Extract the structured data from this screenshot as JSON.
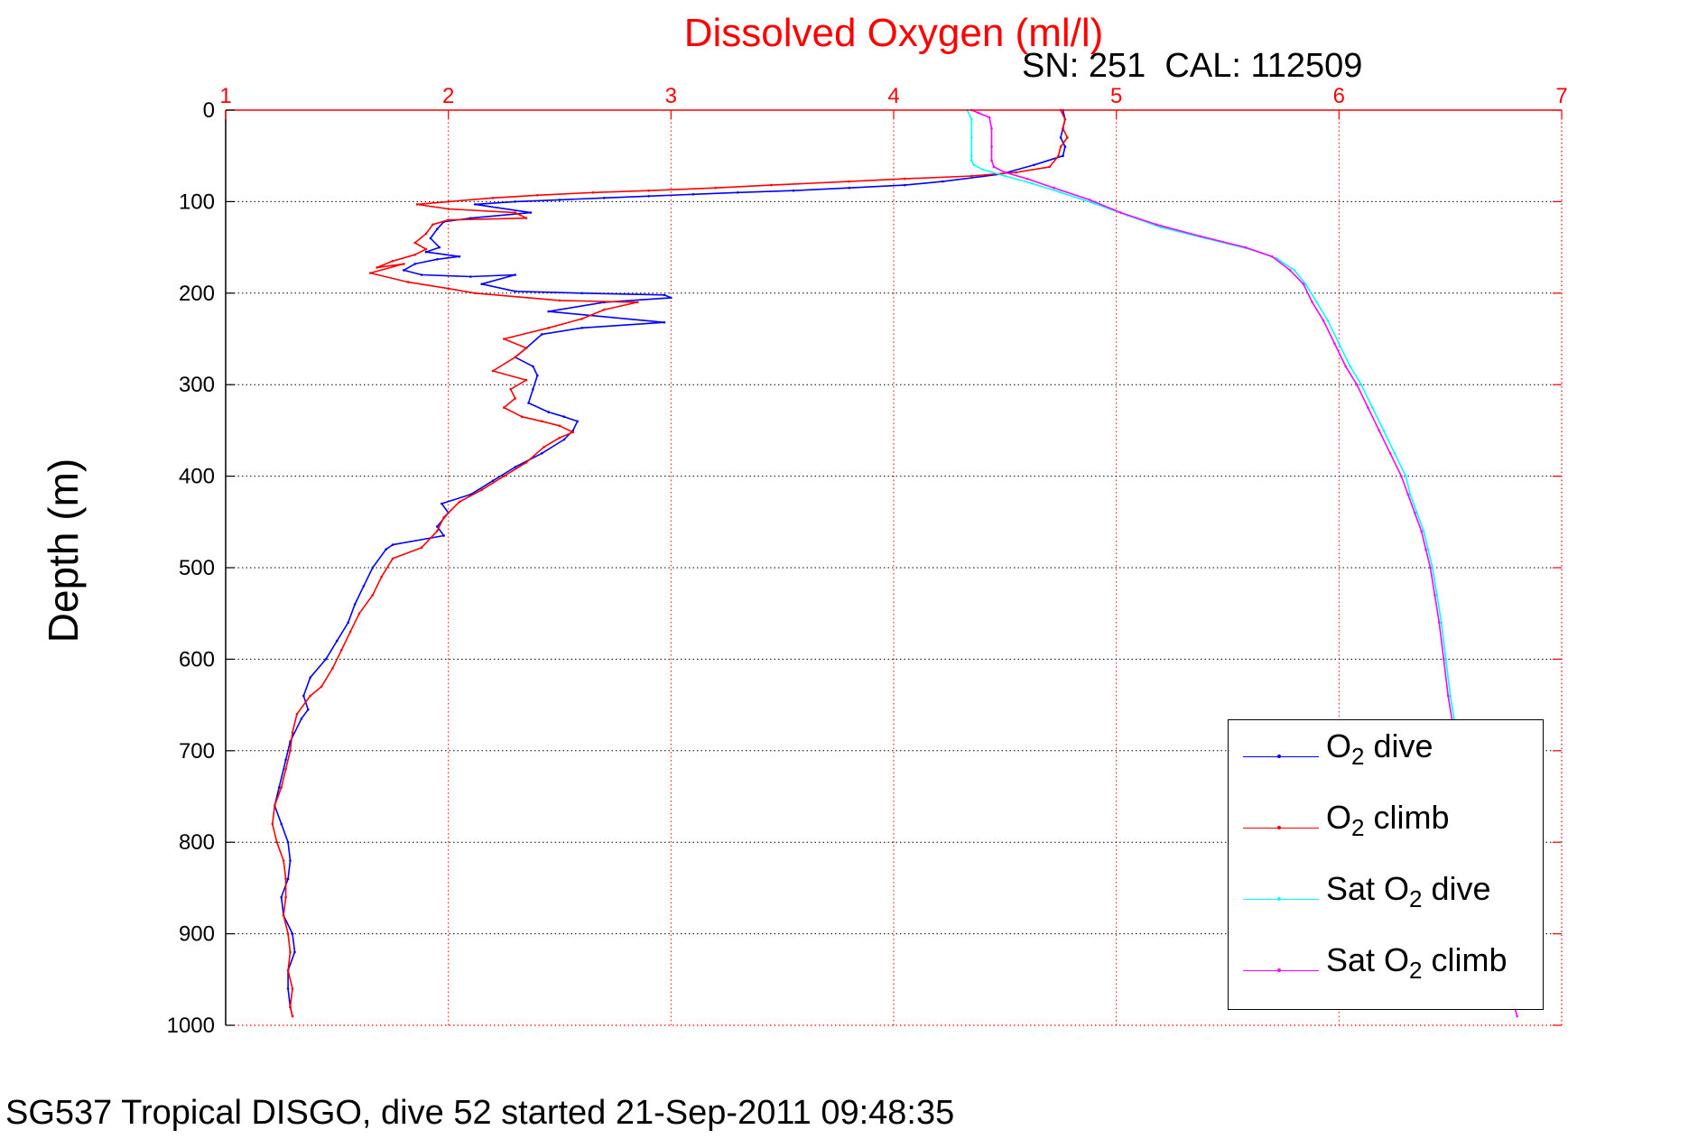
{
  "chart_data": {
    "type": "line",
    "title": "Dissolved Oxygen (ml/l)",
    "subtitle": "SN: 251  CAL: 112509",
    "xlabel": "",
    "ylabel": "Depth (m)",
    "footer": "SG537 Tropical DISGO, dive 52 started 21-Sep-2011 09:48:35",
    "xlim": [
      1,
      7
    ],
    "ylim": [
      0,
      1000
    ],
    "y_inverted": true,
    "x_axis_position": "top",
    "xticks": [
      1,
      2,
      3,
      4,
      5,
      6,
      7
    ],
    "yticks": [
      0,
      100,
      200,
      300,
      400,
      500,
      600,
      700,
      800,
      900,
      1000
    ],
    "grid": true,
    "legend_position": "bottom-right",
    "colors": {
      "axis_top": "#ff0000",
      "axis_left": "#000000",
      "grid_top": "#ff0000",
      "grid_left": "#000000"
    },
    "series": [
      {
        "name": "O2 dive",
        "legend_main": "O",
        "legend_sub": "2",
        "legend_rest": " dive",
        "color": "#0000ff",
        "x": [
          4.76,
          4.77,
          4.76,
          4.75,
          4.77,
          4.76,
          4.63,
          4.48,
          4.22,
          4.05,
          3.8,
          3.55,
          3.3,
          3.1,
          2.9,
          2.7,
          2.5,
          2.3,
          2.12,
          2.37,
          2.1,
          1.98,
          1.95,
          1.92,
          1.96,
          1.9,
          2.05,
          1.95,
          1.85,
          1.8,
          1.88,
          2.1,
          2.3,
          2.15,
          2.3,
          2.6,
          2.97,
          3.0,
          2.7,
          2.45,
          2.97,
          2.6,
          2.42,
          2.35,
          2.3,
          2.38,
          2.4,
          2.38,
          2.36,
          2.45,
          2.52,
          2.58,
          2.56,
          2.52,
          2.42,
          2.3,
          2.2,
          2.1,
          1.97,
          2.0,
          1.95,
          1.98,
          1.75,
          1.72,
          1.66,
          1.62,
          1.58,
          1.55,
          1.5,
          1.45,
          1.38,
          1.35,
          1.37,
          1.34,
          1.29,
          1.27,
          1.24,
          1.22,
          1.25,
          1.28,
          1.29,
          1.28,
          1.25,
          1.26,
          1.3,
          1.31,
          1.28,
          1.28,
          1.29,
          1.3
        ],
        "y": [
          0,
          10,
          20,
          30,
          40,
          50,
          60,
          70,
          78,
          82,
          85,
          88,
          90,
          92,
          94,
          96,
          98,
          100,
          103,
          112,
          118,
          122,
          130,
          140,
          150,
          155,
          160,
          163,
          168,
          175,
          180,
          182,
          180,
          190,
          198,
          200,
          202,
          205,
          210,
          220,
          232,
          238,
          245,
          260,
          270,
          280,
          290,
          305,
          320,
          330,
          335,
          340,
          350,
          360,
          375,
          390,
          405,
          420,
          430,
          440,
          455,
          465,
          475,
          480,
          500,
          520,
          540,
          560,
          580,
          600,
          620,
          640,
          655,
          665,
          690,
          710,
          740,
          760,
          780,
          800,
          820,
          840,
          860,
          880,
          900,
          920,
          940,
          960,
          980,
          990
        ]
      },
      {
        "name": "O2 climb",
        "legend_main": "O",
        "legend_sub": "2",
        "legend_rest": " climb",
        "color": "#ff0000",
        "x": [
          4.75,
          4.77,
          4.76,
          4.78,
          4.75,
          4.74,
          4.7,
          4.55,
          4.35,
          4.05,
          3.8,
          3.45,
          3.2,
          2.9,
          2.65,
          2.4,
          2.2,
          2.0,
          1.86,
          2.0,
          2.3,
          2.35,
          2.0,
          1.93,
          1.9,
          1.85,
          1.9,
          1.85,
          1.75,
          1.68,
          1.8,
          1.65,
          1.82,
          2.0,
          2.12,
          2.5,
          2.85,
          2.7,
          2.6,
          2.45,
          2.25,
          2.35,
          2.3,
          2.2,
          2.35,
          2.28,
          2.3,
          2.25,
          2.33,
          2.42,
          2.5,
          2.56,
          2.5,
          2.43,
          2.35,
          2.25,
          2.15,
          2.05,
          1.98,
          1.95,
          1.88,
          1.75,
          1.7,
          1.66,
          1.6,
          1.56,
          1.52,
          1.48,
          1.43,
          1.38,
          1.32,
          1.3,
          1.29,
          1.27,
          1.25,
          1.22,
          1.21,
          1.23,
          1.26,
          1.27,
          1.27,
          1.26,
          1.28,
          1.29,
          1.28,
          1.3,
          1.29,
          1.3
        ],
        "y": [
          0,
          10,
          20,
          30,
          40,
          50,
          62,
          68,
          72,
          75,
          78,
          82,
          85,
          88,
          90,
          93,
          96,
          100,
          103,
          108,
          112,
          118,
          120,
          125,
          135,
          145,
          152,
          158,
          165,
          172,
          168,
          178,
          188,
          195,
          200,
          208,
          210,
          218,
          228,
          238,
          250,
          260,
          270,
          285,
          295,
          305,
          315,
          325,
          335,
          340,
          345,
          352,
          358,
          368,
          385,
          400,
          415,
          428,
          445,
          460,
          478,
          490,
          510,
          530,
          550,
          570,
          590,
          610,
          630,
          640,
          660,
          680,
          700,
          720,
          740,
          760,
          780,
          800,
          820,
          840,
          860,
          880,
          900,
          920,
          940,
          960,
          980,
          990
        ]
      },
      {
        "name": "Sat O2 dive",
        "legend_main": "Sat O",
        "legend_sub": "2",
        "legend_rest": " dive",
        "color": "#00ffff",
        "x": [
          4.33,
          4.35,
          4.35,
          4.35,
          4.35,
          4.36,
          4.4,
          4.5,
          4.62,
          4.75,
          4.9,
          5.05,
          5.2,
          5.4,
          5.6,
          5.72,
          5.8,
          5.85,
          5.9,
          5.95,
          6.0,
          6.05,
          6.1,
          6.15,
          6.2,
          6.25,
          6.3,
          6.32,
          6.35,
          6.38,
          6.4,
          6.42,
          6.44,
          6.46,
          6.48,
          6.5,
          6.52
        ],
        "y": [
          0,
          10,
          30,
          50,
          55,
          60,
          65,
          72,
          80,
          90,
          102,
          115,
          128,
          140,
          152,
          162,
          175,
          190,
          210,
          230,
          255,
          280,
          300,
          325,
          350,
          375,
          400,
          420,
          440,
          460,
          480,
          500,
          530,
          560,
          600,
          640,
          670
        ]
      },
      {
        "name": "Sat O2 climb",
        "legend_main": "Sat O",
        "legend_sub": "2",
        "legend_rest": " climb",
        "color": "#ff00ff",
        "x": [
          4.35,
          4.38,
          4.43,
          4.44,
          4.44,
          4.44,
          4.45,
          4.5,
          4.6,
          4.72,
          4.88,
          5.02,
          5.18,
          5.38,
          5.58,
          5.7,
          5.78,
          5.84,
          5.88,
          5.93,
          5.98,
          6.03,
          6.08,
          6.13,
          6.18,
          6.23,
          6.28,
          6.31,
          6.34,
          6.37,
          6.39,
          6.41,
          6.43,
          6.45,
          6.47,
          6.49,
          6.51,
          6.55,
          6.6,
          6.65,
          6.7,
          6.75,
          6.8
        ],
        "y": [
          0,
          3,
          8,
          20,
          40,
          55,
          62,
          68,
          75,
          85,
          98,
          112,
          125,
          138,
          150,
          160,
          175,
          190,
          210,
          230,
          255,
          280,
          300,
          325,
          350,
          375,
          400,
          420,
          440,
          460,
          480,
          500,
          530,
          560,
          600,
          640,
          670,
          730,
          790,
          850,
          900,
          950,
          990
        ]
      }
    ]
  }
}
